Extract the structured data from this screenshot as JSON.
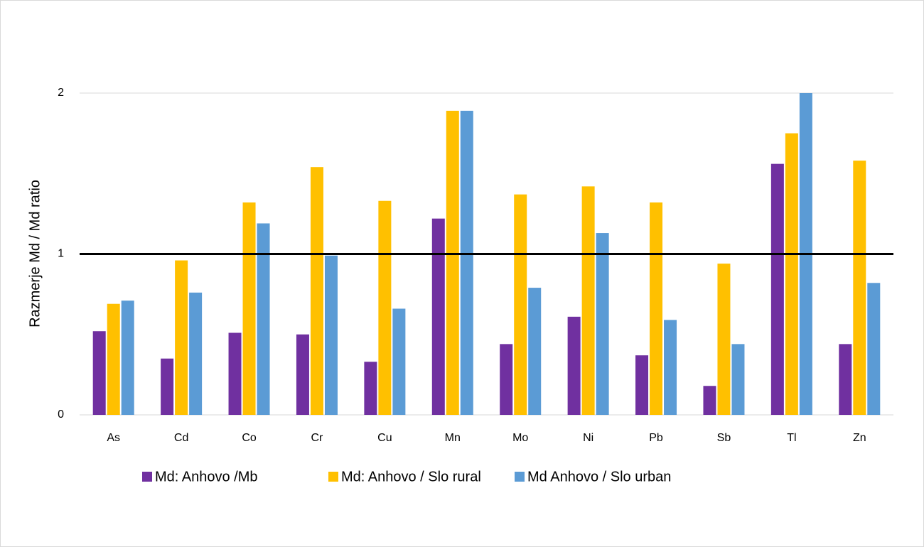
{
  "chart_data": {
    "type": "bar",
    "y_label": "Razmerje Md / Md ratio",
    "categories": [
      "As",
      "Cd",
      "Co",
      "Cr",
      "Cu",
      "Mn",
      "Mo",
      "Ni",
      "Pb",
      "Sb",
      "Tl",
      "Zn"
    ],
    "series": [
      {
        "name": "Md: Anhovo /Mb",
        "color": "#7030a0",
        "values": [
          0.52,
          0.35,
          0.51,
          0.5,
          0.33,
          1.22,
          0.44,
          0.61,
          0.37,
          0.18,
          1.56,
          0.44
        ]
      },
      {
        "name": "Md: Anhovo / Slo rural",
        "color": "#ffc000",
        "values": [
          0.69,
          0.96,
          1.32,
          1.54,
          1.33,
          1.89,
          1.37,
          1.42,
          1.32,
          0.94,
          1.75,
          1.58
        ]
      },
      {
        "name": "Md Anhovo / Slo urban",
        "color": "#5b9bd5",
        "values": [
          0.71,
          0.76,
          1.19,
          0.99,
          0.66,
          1.89,
          0.79,
          1.13,
          0.59,
          0.44,
          2.0,
          0.82
        ]
      }
    ],
    "reference_line": 1,
    "ylim": [
      0,
      2
    ],
    "yticks": [
      0,
      1,
      2
    ],
    "grid": true,
    "legend": "bottom"
  }
}
